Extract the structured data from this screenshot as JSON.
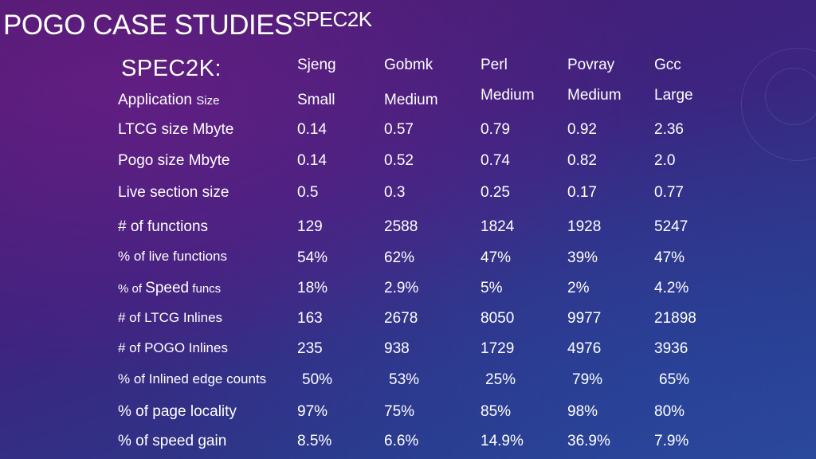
{
  "title": {
    "main": "POGO CASE STUDIES",
    "suffix": "SPEC2K"
  },
  "table": {
    "corner_label": "SPEC2K:",
    "columns": [
      {
        "name": "Sjeng",
        "size": "Small"
      },
      {
        "name": "Gobmk",
        "size": "Medium"
      },
      {
        "name": "Perl",
        "size": "Medium"
      },
      {
        "name": "Povray",
        "size": "Medium"
      },
      {
        "name": "Gcc",
        "size": "Large"
      }
    ],
    "size_row_label": {
      "main": "Application",
      "sub": "Size"
    },
    "rows": [
      {
        "label": "LTCG size Mbyte",
        "values": [
          "0.14",
          "0.57",
          "0.79",
          "0.92",
          "2.36"
        ]
      },
      {
        "label": "Pogo size Mbyte",
        "values": [
          "0.14",
          "0.52",
          "0.74",
          "0.82",
          "2.0"
        ]
      },
      {
        "label": "Live section size",
        "values": [
          "0.5",
          "0.3",
          "0.25",
          "0.17",
          "0.77"
        ]
      },
      {
        "label": "# of functions",
        "values": [
          "129",
          "2588",
          "1824",
          "1928",
          "5247"
        ]
      },
      {
        "label": "% of live functions",
        "values": [
          "54%",
          "62%",
          "47%",
          "39%",
          "47%"
        ]
      },
      {
        "label_parts": [
          "% of ",
          "Speed",
          " funcs"
        ],
        "values": [
          "18%",
          "2.9%",
          "5%",
          "2%",
          "4.2%"
        ]
      },
      {
        "label": "# of LTCG Inlines",
        "values": [
          "163",
          "2678",
          "8050",
          "9977",
          "21898"
        ]
      },
      {
        "label": "# of POGO Inlines",
        "values": [
          "235",
          "938",
          "1729",
          "4976",
          "3936"
        ]
      },
      {
        "label": "% of Inlined edge counts",
        "values": [
          "50%",
          "53%",
          "25%",
          "79%",
          "65%"
        ]
      },
      {
        "label": "% of page locality",
        "values": [
          "97%",
          "75%",
          "85%",
          "98%",
          "80%"
        ]
      },
      {
        "label": "% of speed gain",
        "values": [
          "8.5%",
          "6.6%",
          "14.9%",
          "36.9%",
          "7.9%"
        ]
      }
    ]
  }
}
